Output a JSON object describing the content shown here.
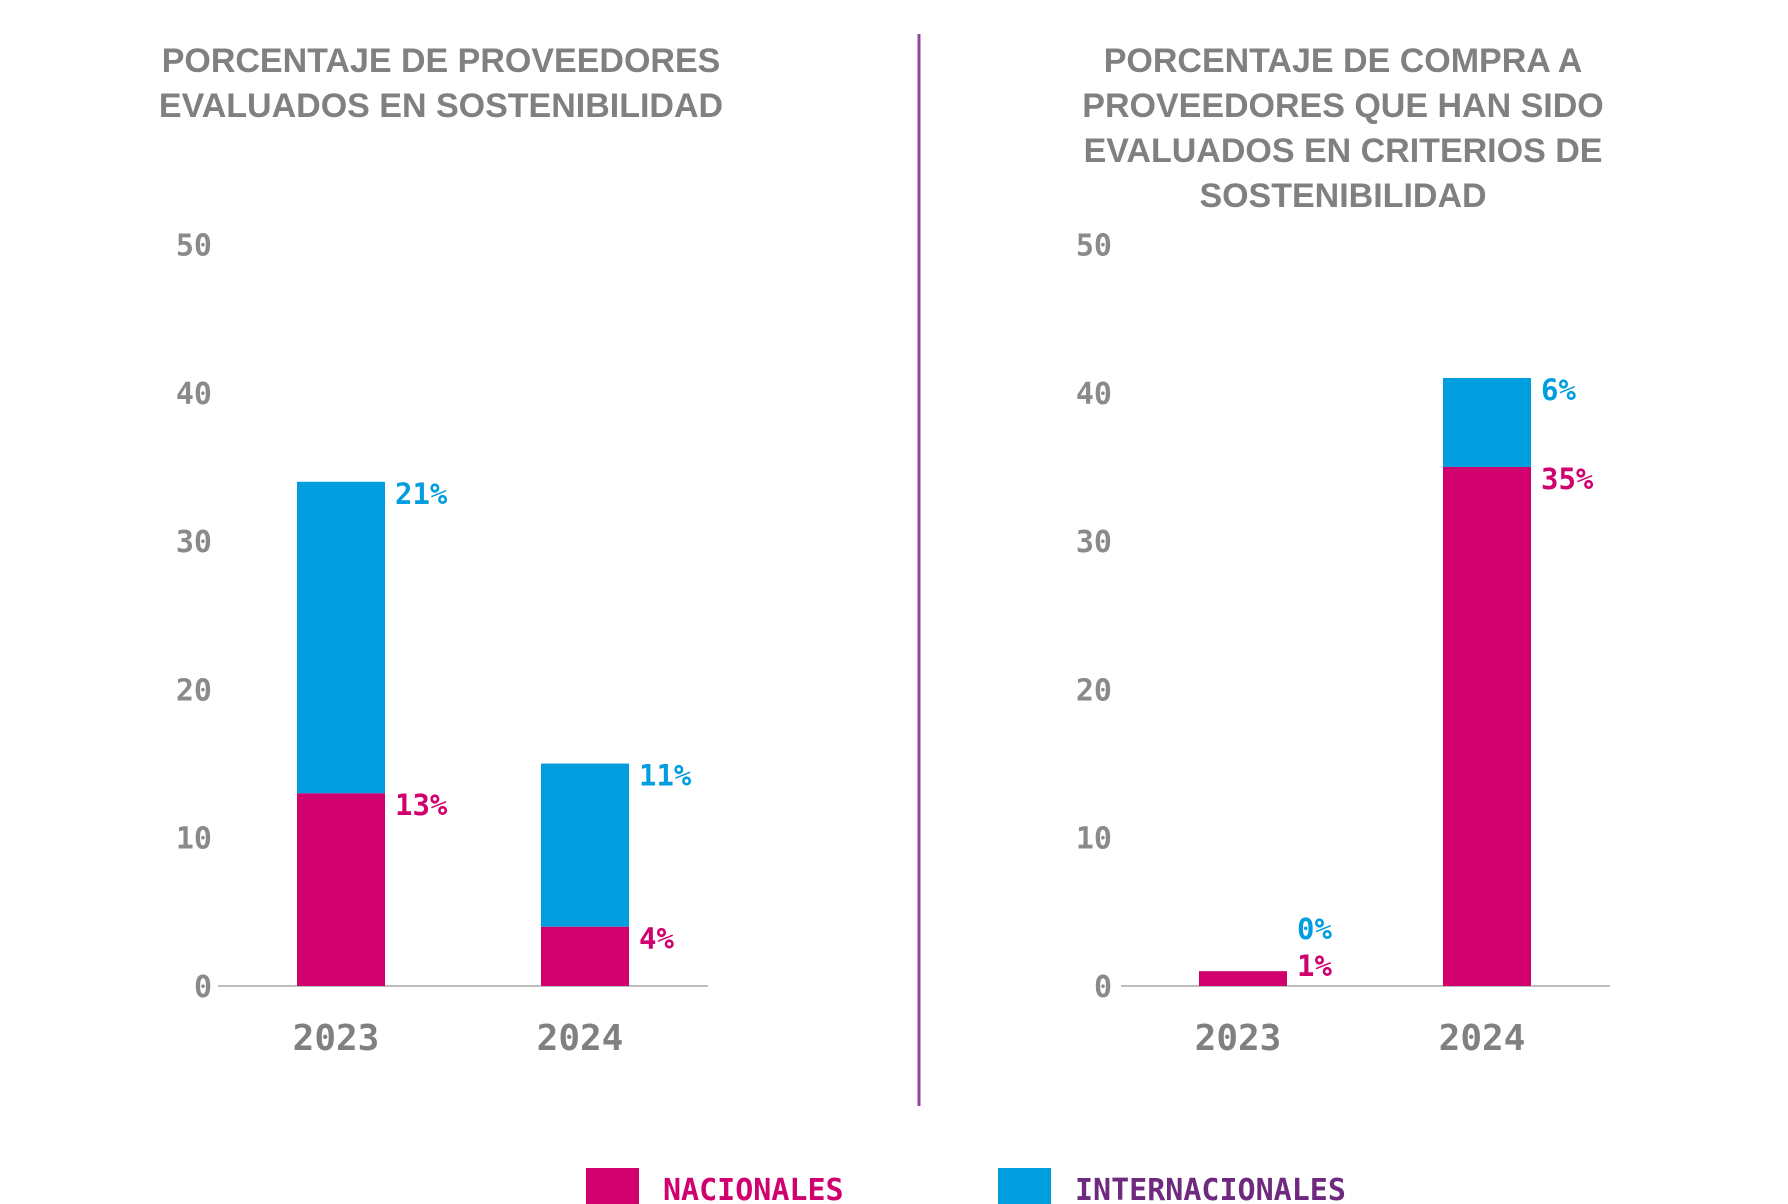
{
  "colors": {
    "nacionales": "#d0006f",
    "internacionales": "#009ddf",
    "divider": "#8e4a9a",
    "axis": "#bdbdbd",
    "text": "#808080",
    "legend_internacionales_text": "#6f2a7f"
  },
  "legend": {
    "position": "bottom",
    "items": [
      {
        "label": "NACIONALES",
        "color": "#d0006f",
        "text_color": "#d0006f"
      },
      {
        "label": "INTERNACIONALES",
        "color": "#009ddf",
        "text_color": "#6f2a7f"
      }
    ]
  },
  "chart_data": [
    {
      "type": "bar",
      "stacked": true,
      "title_lines": [
        "PORCENTAJE DE PROVEEDORES",
        "EVALUADOS EN SOSTENIBILIDAD"
      ],
      "categories": [
        "2023",
        "2024"
      ],
      "ylim": [
        0,
        50
      ],
      "yticks": [
        "0",
        "10",
        "20",
        "30",
        "40",
        "50"
      ],
      "grid": false,
      "series": [
        {
          "name": "NACIONALES",
          "values": [
            13,
            4
          ],
          "labels": [
            "13%",
            "4%"
          ]
        },
        {
          "name": "INTERNACIONALES",
          "values": [
            21,
            11
          ],
          "labels": [
            "21%",
            "11%"
          ]
        }
      ]
    },
    {
      "type": "bar",
      "stacked": true,
      "title_lines": [
        "PORCENTAJE DE COMPRA A",
        "PROVEEDORES QUE HAN SIDO",
        "EVALUADOS EN CRITERIOS DE",
        "SOSTENIBILIDAD"
      ],
      "categories": [
        "2023",
        "2024"
      ],
      "ylim": [
        0,
        50
      ],
      "yticks": [
        "0",
        "10",
        "20",
        "30",
        "40",
        "50"
      ],
      "grid": false,
      "series": [
        {
          "name": "NACIONALES",
          "values": [
            1,
            35
          ],
          "labels": [
            "1%",
            "35%"
          ]
        },
        {
          "name": "INTERNACIONALES",
          "values": [
            0,
            6
          ],
          "labels": [
            "0%",
            "6%"
          ]
        }
      ]
    }
  ]
}
